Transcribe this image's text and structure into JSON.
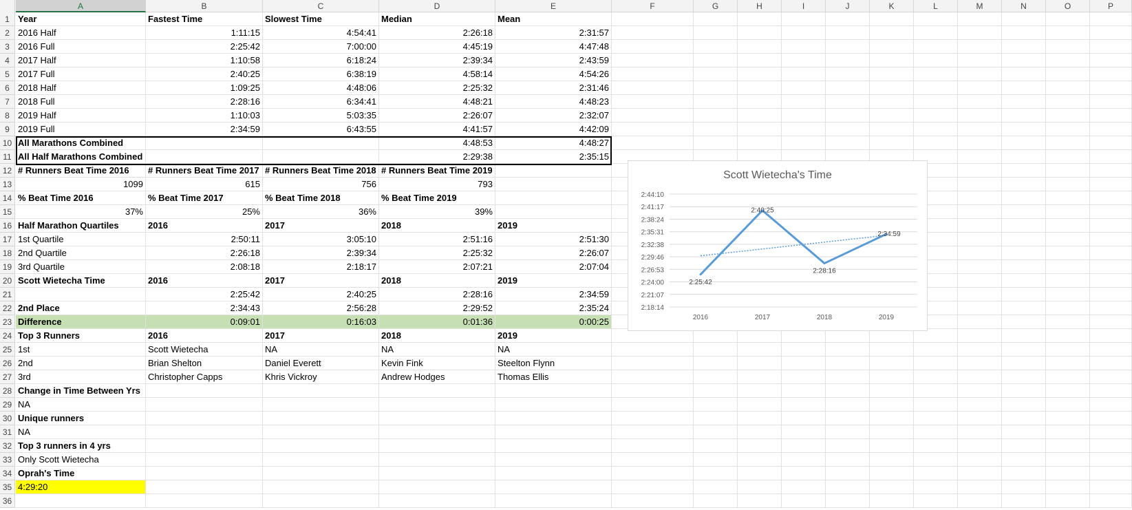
{
  "columns": [
    "A",
    "B",
    "C",
    "D",
    "E",
    "F",
    "G",
    "H",
    "I",
    "J",
    "K",
    "L",
    "M",
    "N",
    "O",
    "P"
  ],
  "selected_column": "A",
  "rows": [
    {
      "n": "1",
      "cells": [
        "Year",
        "Fastest Time",
        "Slowest Time",
        "Median",
        "Mean"
      ],
      "style": "headbold"
    },
    {
      "n": "2",
      "cells": [
        "2016 Half",
        "1:11:15",
        "4:54:41",
        "2:26:18",
        "2:31:57"
      ]
    },
    {
      "n": "3",
      "cells": [
        "2016 Full",
        "2:25:42",
        "7:00:00",
        "4:45:19",
        "4:47:48"
      ]
    },
    {
      "n": "4",
      "cells": [
        "2017 Half",
        "1:10:58",
        "6:18:24",
        "2:39:34",
        "2:43:59"
      ]
    },
    {
      "n": "5",
      "cells": [
        "2017 Full",
        "2:40:25",
        "6:38:19",
        "4:58:14",
        "4:54:26"
      ]
    },
    {
      "n": "6",
      "cells": [
        "2018 Half",
        "1:09:25",
        "4:48:06",
        "2:25:32",
        "2:31:46"
      ]
    },
    {
      "n": "7",
      "cells": [
        "2018 Full",
        "2:28:16",
        "6:34:41",
        "4:48:21",
        "4:48:23"
      ]
    },
    {
      "n": "8",
      "cells": [
        "2019 Half",
        "1:10:03",
        "5:03:35",
        "2:26:07",
        "2:32:07"
      ]
    },
    {
      "n": "9",
      "cells": [
        "2019 Full",
        "2:34:59",
        "6:43:55",
        "4:41:57",
        "4:42:09"
      ]
    },
    {
      "n": "10",
      "cells": [
        "All Marathons Combined",
        "",
        "",
        "4:48:53",
        "4:48:27"
      ],
      "style": "abold"
    },
    {
      "n": "11",
      "cells": [
        "All Half Marathons Combined",
        "",
        "",
        "2:29:38",
        "2:35:15"
      ],
      "style": "abold"
    },
    {
      "n": "12",
      "cells": [
        "# Runners Beat Time 2016",
        "# Runners Beat Time 2017",
        "# Runners Beat Time 2018",
        "# Runners Beat Time 2019",
        ""
      ],
      "style": "headbold"
    },
    {
      "n": "13",
      "cells": [
        "1099",
        "615",
        "756",
        "793",
        ""
      ],
      "style": "allnum"
    },
    {
      "n": "14",
      "cells": [
        "% Beat Time 2016",
        "% Beat Time 2017",
        "% Beat Time 2018",
        "% Beat Time 2019",
        ""
      ],
      "style": "headbold"
    },
    {
      "n": "15",
      "cells": [
        "37%",
        "25%",
        "36%",
        "39%",
        ""
      ],
      "style": "allnum"
    },
    {
      "n": "16",
      "cells": [
        "Half Marathon Quartiles",
        "2016",
        "2017",
        "2018",
        "2019"
      ],
      "style": "headbold"
    },
    {
      "n": "17",
      "cells": [
        "1st Quartile",
        "2:50:11",
        "3:05:10",
        "2:51:16",
        "2:51:30"
      ]
    },
    {
      "n": "18",
      "cells": [
        "2nd Quartile",
        "2:26:18",
        "2:39:34",
        "2:25:32",
        "2:26:07"
      ]
    },
    {
      "n": "19",
      "cells": [
        "3rd Quartile",
        "2:08:18",
        "2:18:17",
        "2:07:21",
        "2:07:04"
      ]
    },
    {
      "n": "20",
      "cells": [
        "Scott Wietecha Time",
        "2016",
        "2017",
        "2018",
        "2019"
      ],
      "style": "headbold"
    },
    {
      "n": "21",
      "cells": [
        "",
        "2:25:42",
        "2:40:25",
        "2:28:16",
        "2:34:59"
      ]
    },
    {
      "n": "22",
      "cells": [
        "2nd Place",
        "2:34:43",
        "2:56:28",
        "2:29:52",
        "2:35:24"
      ],
      "style": "abold"
    },
    {
      "n": "23",
      "cells": [
        "Difference",
        "0:09:01",
        "0:16:03",
        "0:01:36",
        "0:00:25"
      ],
      "style": "green"
    },
    {
      "n": "24",
      "cells": [
        "Top 3 Runners",
        "2016",
        "2017",
        "2018",
        "2019"
      ],
      "style": "headbold"
    },
    {
      "n": "25",
      "cells": [
        "1st",
        "Scott Wietecha",
        "NA",
        "NA",
        "NA"
      ],
      "style": "text"
    },
    {
      "n": "26",
      "cells": [
        "2nd",
        "Brian Shelton",
        "Daniel Everett",
        "Kevin Fink",
        "Steelton Flynn"
      ],
      "style": "text"
    },
    {
      "n": "27",
      "cells": [
        "3rd",
        "Christopher Capps",
        "Khris Vickroy",
        "Andrew Hodges",
        "Thomas Ellis"
      ],
      "style": "text"
    },
    {
      "n": "28",
      "cells": [
        "Change in Time Between Yrs",
        "",
        "",
        "",
        ""
      ],
      "style": "abold"
    },
    {
      "n": "29",
      "cells": [
        "NA",
        "",
        "",
        "",
        ""
      ],
      "style": "text"
    },
    {
      "n": "30",
      "cells": [
        "Unique runners",
        "",
        "",
        "",
        ""
      ],
      "style": "abold"
    },
    {
      "n": "31",
      "cells": [
        "NA",
        "",
        "",
        "",
        ""
      ],
      "style": "text"
    },
    {
      "n": "32",
      "cells": [
        "Top 3 runners in 4 yrs",
        "",
        "",
        "",
        ""
      ],
      "style": "abold"
    },
    {
      "n": "33",
      "cells": [
        "Only Scott Wietecha",
        "",
        "",
        "",
        ""
      ],
      "style": "text"
    },
    {
      "n": "34",
      "cells": [
        "Oprah's Time",
        "",
        "",
        "",
        ""
      ],
      "style": "abold"
    },
    {
      "n": "35",
      "cells": [
        "4:29:20",
        "",
        "",
        "",
        ""
      ],
      "style": "yellow"
    },
    {
      "n": "36",
      "cells": [
        "",
        "",
        "",
        "",
        ""
      ],
      "style": "text"
    }
  ],
  "chart_data": {
    "type": "line",
    "title": "Scott Wietecha's Time",
    "categories": [
      "2016",
      "2017",
      "2018",
      "2019"
    ],
    "series": [
      {
        "values_seconds": [
          8742,
          9625,
          8896,
          9299
        ]
      }
    ],
    "data_labels": [
      "2:25:42",
      "2:40:25",
      "2:28:16",
      "2:34:59"
    ],
    "trendline": "linear",
    "y_ticks": [
      "2:44:10",
      "2:41:17",
      "2:38:24",
      "2:35:31",
      "2:32:38",
      "2:29:46",
      "2:26:53",
      "2:24:00",
      "2:21:07",
      "2:18:14"
    ],
    "ylim_seconds": [
      8294,
      9850
    ],
    "grid": true,
    "legend": "none",
    "line_color": "#5b9bd5"
  }
}
